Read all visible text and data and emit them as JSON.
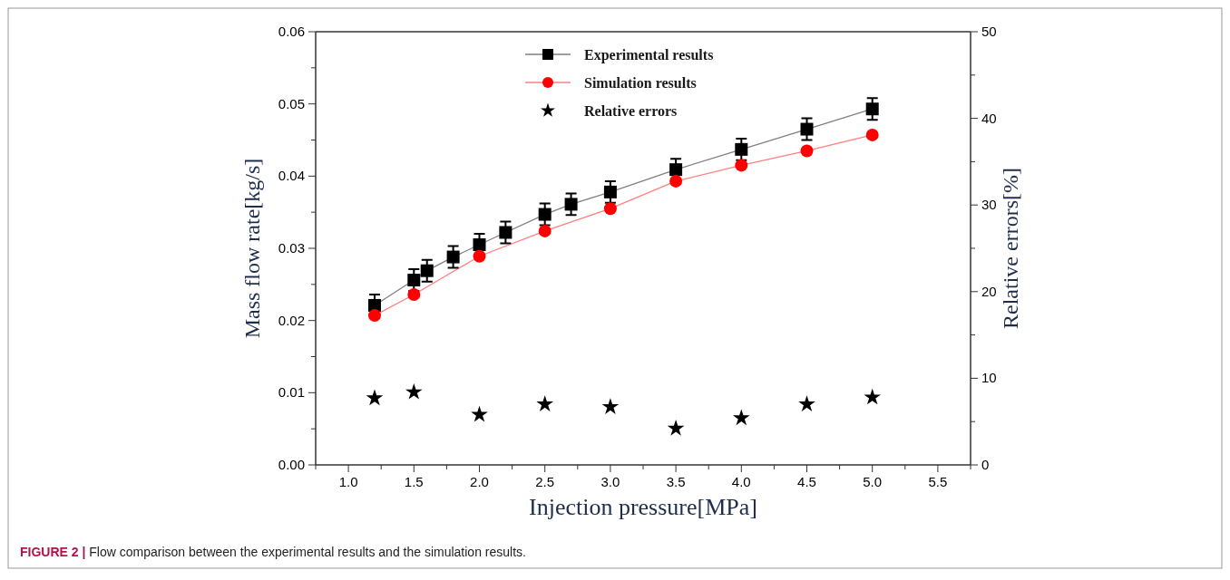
{
  "chart_data": {
    "type": "line",
    "xlabel": "Injection pressure[MPa]",
    "ylabel": "Mass flow rate[kg/s]",
    "y2label": "Relative errors[%]",
    "annotations": [
      "FIGURE 2 | Flow comparison between the experimental results and the simulation results."
    ],
    "xlim": [
      0.75,
      5.75
    ],
    "xticks": [
      {
        "value": 0.75,
        "label": null
      },
      {
        "value": 1,
        "label": "1.0"
      },
      {
        "value": 1.25,
        "label": null
      },
      1.5,
      {
        "value": 1.75,
        "label": null
      },
      {
        "value": 2,
        "label": "2.0"
      },
      {
        "value": 2.25,
        "label": null
      },
      2.5,
      {
        "value": 2.75,
        "label": null
      },
      {
        "value": 3,
        "label": "3.0"
      },
      {
        "value": 3.25,
        "label": null
      },
      3.5,
      {
        "value": 3.75,
        "label": null
      },
      {
        "value": 4,
        "label": "4.0"
      },
      {
        "value": 4.25,
        "label": null
      },
      4.5,
      {
        "value": 4.75,
        "label": null
      },
      {
        "value": 5,
        "label": "5.0"
      },
      {
        "value": 5.25,
        "label": null
      },
      5.5,
      {
        "value": 5.75,
        "label": null
      }
    ],
    "ylim": [
      0,
      0.06
    ],
    "yticks": [
      {
        "value": 0,
        "label": "0.00"
      },
      {
        "value": 0.005,
        "label": null
      },
      {
        "value": 0.01,
        "label": "0.01"
      },
      {
        "value": 0.015,
        "label": null
      },
      {
        "value": 0.02,
        "label": "0.02"
      },
      {
        "value": 0.025,
        "label": null
      },
      {
        "value": 0.03,
        "label": "0.03"
      },
      {
        "value": 0.035,
        "label": null
      },
      {
        "value": 0.04,
        "label": "0.04"
      },
      {
        "value": 0.045,
        "label": null
      },
      {
        "value": 0.05,
        "label": "0.05"
      },
      {
        "value": 0.055,
        "label": null
      },
      {
        "value": 0.06,
        "label": "0.06"
      }
    ],
    "y2lim": [
      0,
      50
    ],
    "y2ticks": [
      0,
      {
        "value": 5,
        "label": null
      },
      10,
      {
        "value": 15,
        "label": null
      },
      20,
      {
        "value": 25,
        "label": null
      },
      30,
      {
        "value": 35,
        "label": null
      },
      40,
      {
        "value": 45,
        "label": null
      },
      50
    ],
    "legend": "top",
    "grid": false,
    "series": [
      {
        "name": "Experimental results",
        "color": "#000000",
        "marker": "square",
        "x": [
          1.2,
          1.5,
          1.6,
          1.8,
          2.0,
          2.2,
          2.5,
          2.7,
          3.0,
          3.5,
          4.0,
          4.5,
          5.0
        ],
        "values": [
          0.0221,
          0.0256,
          0.0269,
          0.0288,
          0.0305,
          0.0322,
          0.0347,
          0.0361,
          0.0378,
          0.0409,
          0.0437,
          0.0465,
          0.0493
        ],
        "errors": [
          0.0015,
          0.0015,
          0.0015,
          0.0015,
          0.0015,
          0.0015,
          0.0015,
          0.0015,
          0.0015,
          0.0015,
          0.0015,
          0.0015,
          0.0015
        ]
      },
      {
        "name": "Simulation results",
        "color": "#ff0000",
        "marker": "circle",
        "x": [
          1.2,
          1.5,
          2.0,
          2.5,
          3.0,
          3.5,
          4.0,
          4.5,
          5.0
        ],
        "values": [
          0.0207,
          0.0236,
          0.0289,
          0.0324,
          0.0355,
          0.0393,
          0.0415,
          0.0435,
          0.0457
        ]
      },
      {
        "name": "Relative errors",
        "type": "scatter",
        "axis": "y2",
        "color": "#000000",
        "marker": "star",
        "x": [
          1.2,
          1.5,
          2.0,
          2.5,
          3.0,
          3.5,
          4.0,
          4.5,
          5.0
        ],
        "values": [
          7.7,
          8.4,
          5.8,
          7.0,
          6.7,
          4.2,
          5.4,
          7.0,
          7.8
        ]
      }
    ]
  }
}
